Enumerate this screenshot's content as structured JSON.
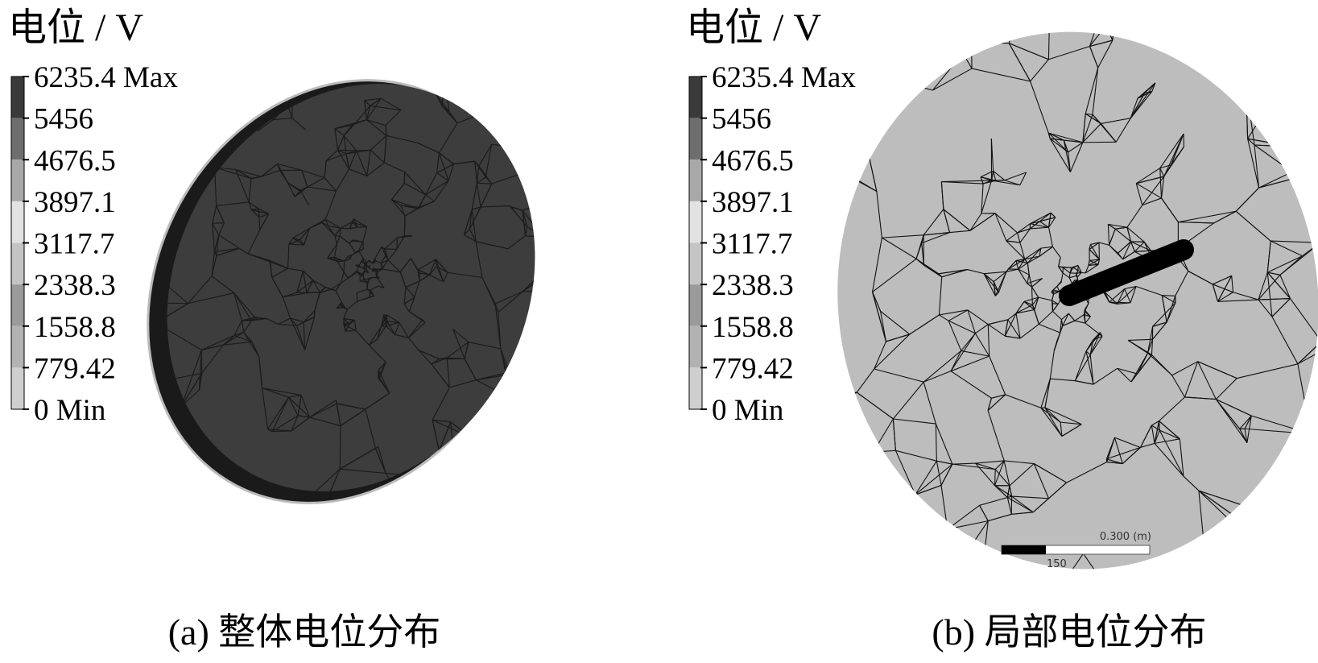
{
  "panels": [
    {
      "title": "电位 / V",
      "legend": [
        "6235.4 Max",
        "5456",
        "4676.5",
        "3897.1",
        "3117.7",
        "2338.3",
        "1558.8",
        "779.42",
        "0 Min"
      ],
      "caption": "(a)  整体电位分布"
    },
    {
      "title": "电位 / V",
      "legend": [
        "6235.4 Max",
        "5456",
        "4676.5",
        "3897.1",
        "3117.7",
        "2338.3",
        "1558.8",
        "779.42",
        "0 Min"
      ],
      "caption": "(b)  局部电位分布",
      "scale_bar": {
        "end_label": "0.300 (m)",
        "mid_label": "150"
      }
    }
  ]
}
